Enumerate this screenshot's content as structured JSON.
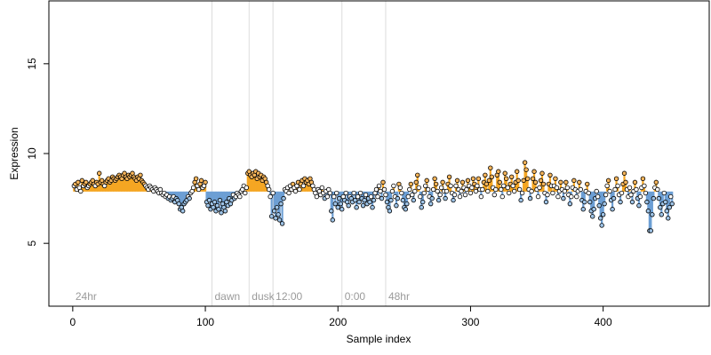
{
  "chart_data": {
    "type": "scatter",
    "title": "",
    "xlabel": "Sample index",
    "ylabel": "Expression",
    "xlim": [
      -18,
      480
    ],
    "ylim": [
      1.5,
      18.5
    ],
    "x_ticks": [
      0,
      100,
      200,
      300,
      400
    ],
    "y_ticks": [
      5,
      10,
      15
    ],
    "grid": false,
    "legend": "none",
    "colors": {
      "point_fill_default": "#ffffff",
      "point_fill_high": "#f5b45a",
      "point_fill_low": "#9ec3e6",
      "point_stroke": "#000000",
      "bar_high": "#f5a623",
      "bar_low": "#6d9fd4",
      "phase_line": "#dcdcdc",
      "phase_text": "#9a9a9a"
    },
    "phase_markers": [
      {
        "x": 0,
        "label": "24hr",
        "line": false
      },
      {
        "x": 105,
        "label": "dawn",
        "line": true
      },
      {
        "x": 133,
        "label": "dusk",
        "line": true
      },
      {
        "x": 151,
        "label": "12:00",
        "line": true
      },
      {
        "x": 203,
        "label": "0:00",
        "line": true
      },
      {
        "x": 236,
        "label": "48hr",
        "line": true
      }
    ],
    "series": [
      {
        "x_start": 1,
        "values": [
          8.2,
          8.3,
          8.0,
          8.4,
          8.1,
          7.9,
          8.5,
          8.2,
          8.3,
          8.4,
          8.1,
          8.2,
          8.3,
          8.4,
          8.5,
          8.3,
          8.2,
          8.4,
          8.3,
          8.9,
          8.4,
          8.5,
          8.3,
          8.2,
          8.4,
          8.5,
          8.6,
          8.4,
          8.5,
          8.7,
          8.6,
          8.5,
          8.6,
          8.7,
          8.8,
          8.7,
          8.6,
          8.8,
          8.9,
          8.7,
          8.6,
          8.8,
          8.7,
          8.8,
          8.9,
          8.7,
          8.6,
          8.5,
          8.7,
          8.6,
          8.8,
          8.5,
          8.4,
          8.3,
          8.2,
          8.1,
          8.0,
          8.2,
          8.1,
          8.0,
          7.9,
          8.1,
          8.0,
          7.9,
          7.8,
          8.0,
          7.8,
          7.7,
          7.8,
          7.6,
          7.7,
          7.5,
          7.6,
          7.4,
          7.5,
          7.6,
          7.3,
          7.5,
          7.4,
          7.2,
          6.9,
          7.0,
          6.8,
          7.2,
          7.3,
          7.4,
          7.6,
          7.5,
          7.8,
          7.9,
          8.1,
          8.4,
          8.6,
          8.2,
          8.0,
          8.3,
          8.5,
          8.1,
          8.2,
          8.4,
          7.3,
          7.1,
          7.4,
          6.9,
          7.2,
          7.0,
          7.3,
          6.8,
          7.1,
          6.9,
          7.4,
          6.7,
          7.2,
          7.0,
          6.8,
          7.3,
          7.1,
          7.5,
          7.2,
          7.4,
          7.7,
          7.5,
          7.6,
          7.8,
          7.7,
          7.6,
          7.9,
          8.0,
          8.2,
          7.8,
          8.1,
          8.9,
          9.0,
          8.8,
          8.7,
          8.9,
          8.8,
          9.0,
          8.6,
          8.9,
          8.7,
          8.8,
          8.5,
          8.7,
          8.6,
          8.4,
          8.2,
          8.0,
          7.6,
          6.5,
          7.8,
          6.8,
          6.4,
          7.0,
          6.6,
          6.3,
          7.2,
          6.1,
          7.5,
          8.0,
          7.9,
          8.1,
          7.8,
          8.2,
          8.0,
          8.3,
          8.1,
          7.9,
          8.2,
          8.4,
          8.0,
          8.3,
          8.5,
          8.2,
          8.6,
          8.4,
          8.5,
          8.3,
          8.6,
          8.4,
          8.2,
          8.0,
          7.8,
          7.6,
          8.0,
          7.9,
          7.7,
          8.1,
          7.8,
          7.5,
          7.9,
          7.6,
          8.0,
          7.8,
          6.8,
          6.3,
          7.6,
          7.2,
          7.8,
          7.0,
          7.5,
          7.2,
          6.9,
          7.6,
          7.4,
          7.8,
          7.3,
          7.1,
          7.6,
          7.5,
          7.3,
          7.8,
          7.4,
          7.0,
          7.6,
          7.3,
          7.8,
          7.5,
          7.1,
          7.4,
          7.7,
          7.2,
          7.5,
          7.3,
          7.6,
          7.0,
          7.4,
          7.8,
          8.0,
          7.6,
          8.2,
          7.9,
          7.5,
          8.4,
          8.0,
          7.7,
          7.3,
          7.0,
          6.8,
          7.4,
          7.9,
          8.2,
          7.6,
          7.1,
          7.5,
          8.3,
          8.1,
          7.8,
          7.4,
          7.0,
          6.9,
          7.2,
          7.6,
          8.0,
          8.3,
          7.7,
          7.4,
          7.9,
          8.4,
          8.8,
          8.1,
          7.6,
          7.0,
          7.3,
          7.8,
          8.2,
          8.5,
          8.0,
          7.6,
          7.2,
          7.5,
          8.0,
          8.6,
          8.3,
          7.9,
          7.4,
          7.7,
          8.1,
          8.4,
          7.9,
          7.5,
          7.9,
          8.3,
          8.7,
          8.2,
          7.8,
          7.4,
          7.7,
          8.2,
          8.5,
          8.0,
          7.6,
          7.9,
          8.4,
          8.1,
          7.7,
          8.0,
          8.5,
          8.2,
          7.8,
          8.1,
          8.6,
          8.3,
          7.9,
          8.2,
          8.6,
          8.0,
          7.6,
          8.0,
          8.4,
          8.8,
          8.3,
          7.9,
          8.5,
          9.2,
          8.7,
          8.1,
          7.7,
          8.0,
          8.8,
          9.0,
          8.4,
          8.0,
          7.6,
          8.2,
          8.9,
          8.6,
          8.1,
          7.8,
          8.3,
          8.7,
          8.2,
          7.9,
          8.4,
          9.0,
          8.5,
          8.0,
          7.4,
          7.8,
          8.5,
          9.5,
          9.1,
          8.6,
          8.0,
          7.5,
          7.9,
          8.6,
          9.0,
          8.4,
          8.0,
          7.6,
          8.1,
          8.5,
          8.9,
          8.3,
          7.8,
          7.3,
          7.7,
          8.3,
          8.8,
          8.2,
          7.8,
          8.2,
          8.6,
          8.1,
          7.6,
          7.9,
          8.4,
          8.0,
          7.5,
          7.9,
          8.4,
          8.1,
          7.7,
          7.2,
          7.6,
          8.1,
          8.5,
          8.0,
          7.6,
          7.9,
          8.4,
          8.0,
          7.4,
          6.9,
          7.3,
          7.9,
          8.3,
          7.8,
          7.3,
          6.8,
          6.5,
          6.9,
          7.5,
          7.9,
          7.6,
          7.1,
          6.4,
          6.0,
          6.6,
          7.2,
          7.7,
          8.2,
          8.5,
          7.9,
          7.4,
          6.9,
          7.5,
          8.0,
          8.6,
          8.2,
          7.7,
          7.3,
          7.8,
          8.3,
          8.9,
          8.4,
          8.0,
          7.6,
          8.1,
          7.7,
          7.3,
          7.9,
          8.4,
          8.0,
          7.5,
          7.1,
          7.6,
          8.1,
          8.6,
          8.2,
          7.8,
          7.3,
          6.8,
          5.7,
          5.7,
          6.6,
          7.5,
          8.1,
          8.4,
          8.0,
          7.5,
          7.0,
          6.6,
          7.2,
          7.8,
          7.3,
          6.8,
          6.4,
          7.0,
          7.6,
          7.2
        ]
      }
    ]
  }
}
